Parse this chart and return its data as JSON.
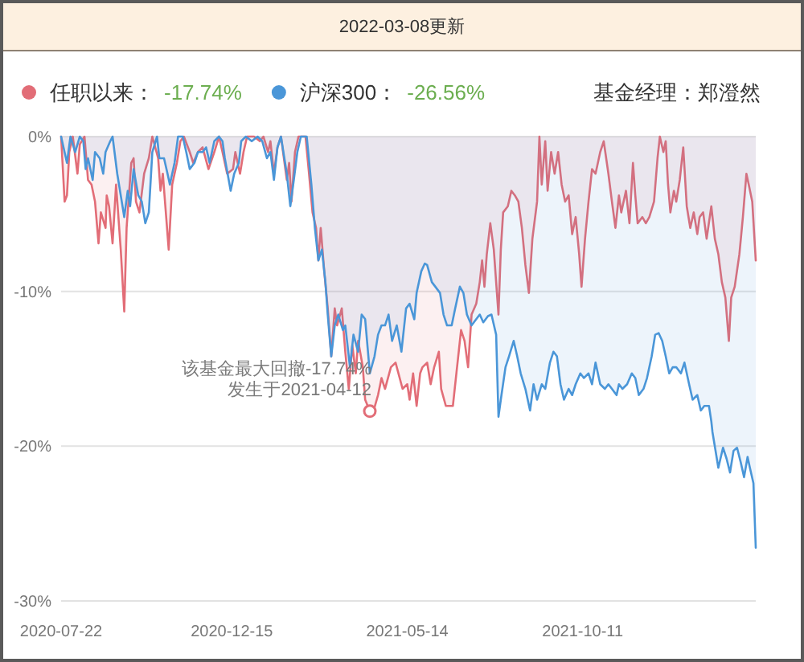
{
  "chart_data": {
    "type": "area",
    "title": "2022-03-08更新",
    "xlim": [
      "2020-07-22",
      "2022-03-08"
    ],
    "xticks": [
      "2020-07-22",
      "2020-12-15",
      "2021-05-14",
      "2021-10-11"
    ],
    "ylim": [
      -30,
      0
    ],
    "yticks": [
      {
        "value": 0,
        "label": "0%"
      },
      {
        "value": -10,
        "label": "-10%"
      },
      {
        "value": -20,
        "label": "-20%"
      },
      {
        "value": -30,
        "label": "-30%"
      }
    ],
    "grid": "y",
    "legend": "top",
    "annotations": [
      {
        "text": "该基金最大回撤-17.74%\n发生于2021-04-12",
        "x": "2021-04-12",
        "y": -17.74
      },
      "-17.74%",
      "-26.56%",
      "基金经理：郑澄然"
    ],
    "series": [
      {
        "name": "任职以来：",
        "color": "#e26d77",
        "x": [
          "2020-07-22",
          "2020-07-25",
          "2020-07-27",
          "2020-07-29",
          "2020-08-01",
          "2020-08-05",
          "2020-08-07",
          "2020-08-11",
          "2020-08-14",
          "2020-08-17",
          "2020-08-20",
          "2020-08-23",
          "2020-08-25",
          "2020-08-29",
          "2020-08-30",
          "2020-09-01",
          "2020-09-04",
          "2020-09-07",
          "2020-09-11",
          "2020-09-14",
          "2020-09-16",
          "2020-09-20",
          "2020-09-22",
          "2020-09-24",
          "2020-09-27",
          "2020-10-01",
          "2020-10-05",
          "2020-10-08",
          "2020-10-13",
          "2020-10-15",
          "2020-10-17",
          "2020-10-22",
          "2020-10-25",
          "2020-10-29",
          "2020-11-01",
          "2020-11-04",
          "2020-11-09",
          "2020-11-12",
          "2020-11-16",
          "2020-11-20",
          "2020-11-25",
          "2020-11-30",
          "2020-12-04",
          "2020-12-07",
          "2020-12-11",
          "2020-12-16",
          "2020-12-18",
          "2020-12-22",
          "2020-12-25",
          "2020-12-28",
          "2021-01-03",
          "2021-01-08",
          "2021-01-11",
          "2021-01-15",
          "2021-01-17",
          "2021-01-20",
          "2021-01-23",
          "2021-01-26",
          "2021-01-31",
          "2021-02-02",
          "2021-02-04",
          "2021-02-07",
          "2021-02-10",
          "2021-02-16",
          "2021-02-19",
          "2021-02-22",
          "2021-02-25",
          "2021-02-27",
          "2021-03-01",
          "2021-03-04",
          "2021-03-07",
          "2021-03-10",
          "2021-03-13",
          "2021-03-15",
          "2021-03-19",
          "2021-03-22",
          "2021-03-25",
          "2021-03-28",
          "2021-03-31",
          "2021-04-02",
          "2021-04-06",
          "2021-04-08",
          "2021-04-12",
          "2021-04-16",
          "2021-04-19",
          "2021-04-22",
          "2021-04-25",
          "2021-04-30",
          "2021-05-04",
          "2021-05-10",
          "2021-05-14",
          "2021-05-16",
          "2021-05-19",
          "2021-05-22",
          "2021-05-25",
          "2021-05-27",
          "2021-05-31",
          "2021-06-03",
          "2021-06-06",
          "2021-06-10",
          "2021-06-12",
          "2021-06-16",
          "2021-06-22",
          "2021-06-25",
          "2021-06-29",
          "2021-07-02",
          "2021-07-05",
          "2021-07-08",
          "2021-07-12",
          "2021-07-15",
          "2021-07-17",
          "2021-07-19",
          "2021-07-21",
          "2021-07-24",
          "2021-07-27",
          "2021-07-31",
          "2021-08-02",
          "2021-08-04",
          "2021-08-08",
          "2021-08-11",
          "2021-08-14",
          "2021-08-17",
          "2021-08-20",
          "2021-08-23",
          "2021-08-26",
          "2021-08-29",
          "2021-09-02",
          "2021-09-04",
          "2021-09-06",
          "2021-09-09",
          "2021-09-11",
          "2021-09-14",
          "2021-09-17",
          "2021-09-20",
          "2021-09-23",
          "2021-09-26",
          "2021-09-29",
          "2021-10-02",
          "2021-10-05",
          "2021-10-08",
          "2021-10-10",
          "2021-10-13",
          "2021-10-16",
          "2021-10-19",
          "2021-10-22",
          "2021-10-26",
          "2021-10-29",
          "2021-11-02",
          "2021-11-05",
          "2021-11-08",
          "2021-11-11",
          "2021-11-13",
          "2021-11-17",
          "2021-11-20",
          "2021-11-23",
          "2021-11-25",
          "2021-11-27",
          "2021-12-01",
          "2021-12-04",
          "2021-12-07",
          "2021-12-11",
          "2021-12-14",
          "2021-12-16",
          "2021-12-19",
          "2021-12-21",
          "2021-12-23",
          "2021-12-25",
          "2021-12-28",
          "2021-12-30",
          "2022-01-02",
          "2022-01-05",
          "2022-01-08",
          "2022-01-11",
          "2022-01-14",
          "2022-01-17",
          "2022-01-19",
          "2022-01-22",
          "2022-01-25",
          "2022-01-29",
          "2022-02-01",
          "2022-02-04",
          "2022-02-07",
          "2022-02-10",
          "2022-02-13",
          "2022-02-15",
          "2022-02-18",
          "2022-02-22",
          "2022-02-25",
          "2022-02-28",
          "2022-03-02",
          "2022-03-05",
          "2022-03-08"
        ],
        "values": [
          0,
          -4.2,
          -3.8,
          -1.0,
          0,
          -2.4,
          -0.5,
          0,
          -2.8,
          -3.1,
          -4.2,
          -6.9,
          -4.9,
          -5.9,
          -3.8,
          -4.5,
          -6.9,
          -3.1,
          -7.3,
          -11.3,
          -5.9,
          -1.7,
          -1.4,
          -4.2,
          -4.9,
          -2.4,
          -1.4,
          0,
          -1.4,
          -3.5,
          -2.4,
          -7.3,
          -3.1,
          -1.7,
          -0.3,
          0,
          -1.0,
          -1.7,
          -1.0,
          -0.7,
          -2.1,
          -1.0,
          0,
          -1.0,
          -2.4,
          -2.1,
          -1.0,
          -2.4,
          -1.0,
          0,
          0,
          -0.3,
          0,
          -1.0,
          -0.3,
          -2.4,
          -0.7,
          0,
          -2.8,
          -1.7,
          -4.2,
          -1.0,
          0,
          0,
          -2.4,
          -4.9,
          -5.9,
          -8.0,
          -5.9,
          -8.7,
          -11.1,
          -14.2,
          -11.1,
          -12.2,
          -11.1,
          -13.9,
          -16.3,
          -13.5,
          -15.3,
          -13.2,
          -14.9,
          -17.0,
          -17.74,
          -17.5,
          -16.7,
          -15.6,
          -16.3,
          -14.9,
          -14.6,
          -16.3,
          -16.0,
          -17.0,
          -15.3,
          -17.4,
          -15.3,
          -14.9,
          -14.6,
          -16.0,
          -14.9,
          -13.9,
          -16.3,
          -17.4,
          -17.4,
          -15.3,
          -12.5,
          -13.2,
          -14.9,
          -11.5,
          -10.8,
          -9.4,
          -8.0,
          -9.7,
          -7.6,
          -5.6,
          -7.3,
          -11.5,
          -7.3,
          -4.9,
          -4.5,
          -3.5,
          -3.8,
          -4.2,
          -5.9,
          -8.3,
          -10.1,
          -6.6,
          -4.2,
          0,
          -3.1,
          -0.3,
          -3.5,
          -1.0,
          -2.4,
          -1.0,
          -3.1,
          -4.2,
          -3.8,
          -6.3,
          -5.2,
          -7.6,
          -9.7,
          -6.6,
          -4.2,
          -2.1,
          -2.4,
          -1.0,
          -0.3,
          -2.4,
          -4.2,
          -5.9,
          -3.8,
          -4.9,
          -3.5,
          -5.6,
          -1.7,
          -3.8,
          -5.6,
          -5.2,
          -5.6,
          -5.2,
          -4.2,
          -1.4,
          0,
          -1.0,
          -0.3,
          -3.1,
          -4.9,
          -3.5,
          -4.2,
          -2.8,
          -0.7,
          -4.5,
          -5.9,
          -4.9,
          -6.3,
          -5.2,
          -4.9,
          -6.6,
          -4.5,
          -6.6,
          -7.6,
          -9.4,
          -10.4,
          -13.2,
          -10.4,
          -9.7,
          -7.6,
          -5.2,
          -2.4,
          -3.1,
          -4.2,
          -8.0
        ]
      },
      {
        "name": "沪深300：",
        "color": "#4a96d8",
        "x": [
          "2020-07-22",
          "2020-07-27",
          "2020-07-30",
          "2020-08-03",
          "2020-08-07",
          "2020-08-10",
          "2020-08-12",
          "2020-08-14",
          "2020-08-18",
          "2020-08-20",
          "2020-08-24",
          "2020-08-27",
          "2020-08-29",
          "2020-09-02",
          "2020-09-04",
          "2020-09-08",
          "2020-09-11",
          "2020-09-14",
          "2020-09-17",
          "2020-09-19",
          "2020-09-22",
          "2020-09-26",
          "2020-09-29",
          "2020-10-02",
          "2020-10-05",
          "2020-10-08",
          "2020-10-12",
          "2020-10-14",
          "2020-10-18",
          "2020-10-21",
          "2020-10-23",
          "2020-10-27",
          "2020-10-30",
          "2020-11-03",
          "2020-11-06",
          "2020-11-09",
          "2020-11-13",
          "2020-11-16",
          "2020-11-20",
          "2020-11-23",
          "2020-11-26",
          "2020-11-30",
          "2020-12-04",
          "2020-12-07",
          "2020-12-09",
          "2020-12-14",
          "2020-12-17",
          "2020-12-21",
          "2020-12-23",
          "2020-12-27",
          "2021-01-01",
          "2021-01-06",
          "2021-01-10",
          "2021-01-14",
          "2021-01-17",
          "2021-01-20",
          "2021-01-23",
          "2021-01-26",
          "2021-01-31",
          "2021-02-03",
          "2021-02-06",
          "2021-02-09",
          "2021-02-12",
          "2021-02-17",
          "2021-02-21",
          "2021-02-24",
          "2021-02-27",
          "2021-03-02",
          "2021-03-05",
          "2021-03-07",
          "2021-03-10",
          "2021-03-13",
          "2021-03-16",
          "2021-03-20",
          "2021-03-22",
          "2021-03-26",
          "2021-03-29",
          "2021-04-02",
          "2021-04-05",
          "2021-04-08",
          "2021-04-12",
          "2021-04-16",
          "2021-04-19",
          "2021-04-22",
          "2021-04-25",
          "2021-04-28",
          "2021-05-01",
          "2021-05-05",
          "2021-05-09",
          "2021-05-13",
          "2021-05-16",
          "2021-05-20",
          "2021-05-22",
          "2021-05-26",
          "2021-05-29",
          "2021-05-31",
          "2021-06-04",
          "2021-06-07",
          "2021-06-11",
          "2021-06-14",
          "2021-06-17",
          "2021-06-21",
          "2021-06-24",
          "2021-06-28",
          "2021-07-01",
          "2021-07-04",
          "2021-07-08",
          "2021-07-12",
          "2021-07-15",
          "2021-07-18",
          "2021-07-22",
          "2021-07-25",
          "2021-07-29",
          "2021-07-31",
          "2021-08-02",
          "2021-08-06",
          "2021-08-09",
          "2021-08-13",
          "2021-08-16",
          "2021-08-19",
          "2021-08-23",
          "2021-08-27",
          "2021-08-30",
          "2021-09-02",
          "2021-09-06",
          "2021-09-09",
          "2021-09-13",
          "2021-09-16",
          "2021-09-19",
          "2021-09-22",
          "2021-09-25",
          "2021-09-29",
          "2021-10-02",
          "2021-10-05",
          "2021-10-09",
          "2021-10-12",
          "2021-10-16",
          "2021-10-19",
          "2021-10-22",
          "2021-10-26",
          "2021-10-30",
          "2021-11-02",
          "2021-11-05",
          "2021-11-09",
          "2021-11-11",
          "2021-11-14",
          "2021-11-18",
          "2021-11-22",
          "2021-11-25",
          "2021-11-28",
          "2021-12-02",
          "2021-12-05",
          "2021-12-09",
          "2021-12-12",
          "2021-12-15",
          "2021-12-18",
          "2021-12-21",
          "2021-12-24",
          "2021-12-27",
          "2021-12-30",
          "2022-01-03",
          "2022-01-06",
          "2022-01-10",
          "2022-01-13",
          "2022-01-17",
          "2022-01-20",
          "2022-01-23",
          "2022-01-27",
          "2022-01-29",
          "2022-01-30",
          "2022-02-04",
          "2022-02-08",
          "2022-02-11",
          "2022-02-14",
          "2022-02-17",
          "2022-02-20",
          "2022-02-23",
          "2022-02-26",
          "2022-03-01",
          "2022-03-03",
          "2022-03-06",
          "2022-03-08"
        ],
        "values": [
          0,
          -1.7,
          0,
          -1.0,
          0,
          -0.3,
          -2.1,
          -1.4,
          -2.8,
          -1.0,
          -1.4,
          -2.4,
          -1.0,
          -0.3,
          0,
          -2.4,
          -3.8,
          -5.2,
          -3.5,
          -4.5,
          -2.1,
          -3.8,
          -4.2,
          -5.6,
          -4.9,
          -1.0,
          0,
          -1.4,
          -1.4,
          -2.4,
          -3.1,
          -1.7,
          0,
          0,
          -1.0,
          -2.1,
          -1.7,
          -1.0,
          -1.0,
          -0.7,
          -1.7,
          -0.3,
          0,
          -0.3,
          -1.4,
          -3.5,
          -2.4,
          -1.7,
          -0.3,
          0,
          -0.3,
          0,
          -0.3,
          -1.4,
          -1.0,
          -2.8,
          -0.7,
          0,
          -2.4,
          -4.5,
          -2.8,
          -1.0,
          0,
          0,
          -3.1,
          -5.9,
          -8.0,
          -7.3,
          -9.4,
          -11.5,
          -14.2,
          -12.2,
          -11.5,
          -12.5,
          -12.2,
          -14.9,
          -12.8,
          -13.9,
          -11.5,
          -11.8,
          -15.3,
          -14.2,
          -12.8,
          -12.2,
          -12.2,
          -11.5,
          -13.2,
          -12.2,
          -13.9,
          -11.1,
          -10.8,
          -11.8,
          -10.1,
          -8.7,
          -8.2,
          -8.3,
          -9.4,
          -9.7,
          -10.1,
          -11.5,
          -12.2,
          -12.2,
          -11.1,
          -9.7,
          -10.1,
          -11.5,
          -12.2,
          -11.8,
          -11.5,
          -12.0,
          -11.6,
          -11.5,
          -12.8,
          -18.1,
          -17.0,
          -14.9,
          -14.2,
          -13.2,
          -14.2,
          -15.3,
          -16.3,
          -17.7,
          -16.0,
          -17.0,
          -16.0,
          -16.3,
          -14.6,
          -13.9,
          -14.2,
          -16.0,
          -17.0,
          -16.3,
          -16.7,
          -16.0,
          -15.3,
          -15.6,
          -15.3,
          -16.0,
          -14.6,
          -16.0,
          -16.3,
          -16.0,
          -16.3,
          -16.7,
          -16.0,
          -16.3,
          -16.0,
          -15.3,
          -15.6,
          -16.7,
          -16.3,
          -15.6,
          -14.2,
          -12.8,
          -12.7,
          -13.2,
          -14.2,
          -15.3,
          -14.9,
          -14.9,
          -15.3,
          -14.6,
          -16.0,
          -17.0,
          -16.7,
          -17.7,
          -17.4,
          -17.4,
          -18.4,
          -19.1,
          -21.4,
          -20.1,
          -20.8,
          -21.7,
          -20.3,
          -20.1,
          -21.0,
          -22.0,
          -20.7,
          -21.4,
          -22.4,
          -26.56
        ]
      }
    ]
  }
}
